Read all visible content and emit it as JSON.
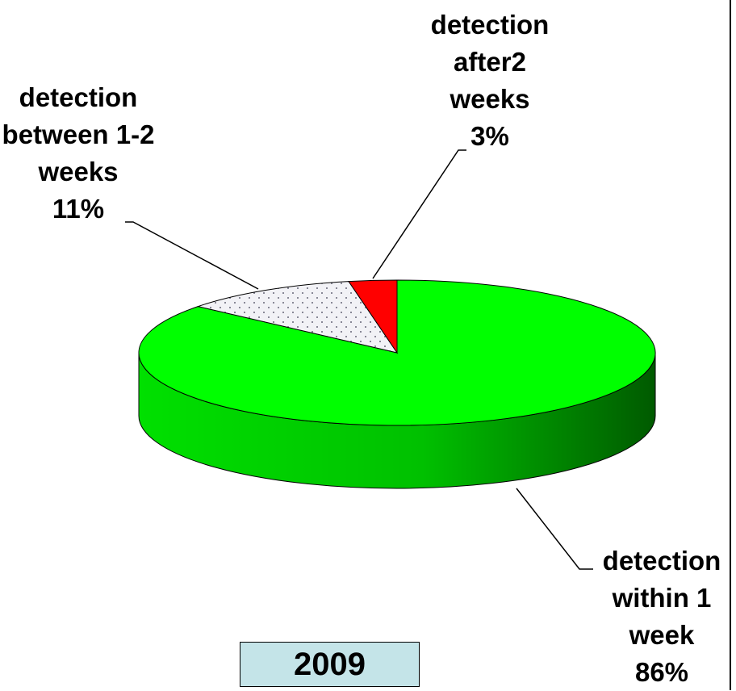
{
  "chart_data": {
    "type": "pie",
    "title": "2009",
    "categories": [
      "detection within 1 week",
      "detection between 1-2 weeks",
      "detection after2 weeks"
    ],
    "values": [
      86,
      11,
      3
    ],
    "value_labels": [
      "86%",
      "11%",
      "3%"
    ],
    "colors": [
      "#00ff00",
      "#e8e8ee",
      "#ff0000"
    ]
  }
}
